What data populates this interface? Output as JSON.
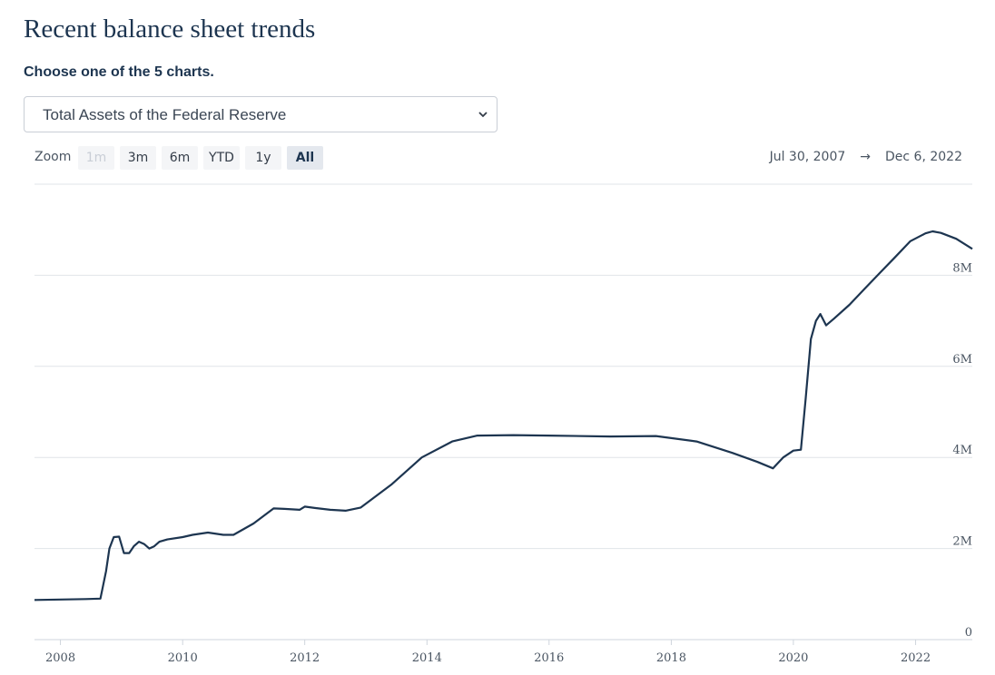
{
  "header": {
    "title": "Recent balance sheet trends",
    "subtitle": "Choose one of the 5 charts."
  },
  "chart_selector": {
    "selected": "Total Assets of the Federal Reserve"
  },
  "zoom": {
    "label": "Zoom",
    "buttons": [
      {
        "label": "1m",
        "state": "disabled"
      },
      {
        "label": "3m",
        "state": "normal"
      },
      {
        "label": "6m",
        "state": "normal"
      },
      {
        "label": "YTD",
        "state": "normal"
      },
      {
        "label": "1y",
        "state": "normal"
      },
      {
        "label": "All",
        "state": "selected"
      }
    ]
  },
  "range": {
    "from": "Jul 30, 2007",
    "arrow": "→",
    "to": "Dec 6, 2022"
  },
  "colors": {
    "line": "#1d3550",
    "grid": "#e1e4e8",
    "text": "#1d3550"
  },
  "chart_data": {
    "type": "line",
    "title": "",
    "xlabel": "",
    "ylabel": "",
    "x_ticks": [
      "2008",
      "2010",
      "2012",
      "2014",
      "2016",
      "2018",
      "2020",
      "2022"
    ],
    "y_ticks": [
      "0",
      "2M",
      "4M",
      "6M",
      "8M"
    ],
    "xlim": [
      "2007-07-30",
      "2022-12-06"
    ],
    "ylim": [
      0,
      10000000
    ],
    "grid": "horizontal",
    "series": [
      {
        "x": [
          "2007-07-30",
          "2008-01-01",
          "2008-06-01",
          "2008-08-27",
          "2008-09-30",
          "2008-10-20",
          "2008-11-15",
          "2008-12-17",
          "2009-01-15",
          "2009-02-15",
          "2009-03-15",
          "2009-04-15",
          "2009-05-15",
          "2009-06-15",
          "2009-07-15",
          "2009-08-15",
          "2009-10-01",
          "2010-01-01",
          "2010-03-01",
          "2010-06-01",
          "2010-09-01",
          "2010-11-01",
          "2011-03-01",
          "2011-06-29",
          "2011-09-01",
          "2011-12-01",
          "2012-01-01",
          "2012-03-01",
          "2012-06-01",
          "2012-09-01",
          "2012-12-01",
          "2013-06-01",
          "2013-12-01",
          "2014-06-01",
          "2014-10-29",
          "2015-06-01",
          "2016-01-01",
          "2017-01-01",
          "2017-10-01",
          "2018-06-01",
          "2019-01-01",
          "2019-06-01",
          "2019-09-01",
          "2019-11-01",
          "2020-01-01",
          "2020-02-15",
          "2020-03-15",
          "2020-04-15",
          "2020-05-15",
          "2020-06-10",
          "2020-07-15",
          "2020-09-01",
          "2020-12-01",
          "2021-03-01",
          "2021-06-01",
          "2021-09-01",
          "2021-12-01",
          "2022-03-01",
          "2022-04-13",
          "2022-06-01",
          "2022-09-01",
          "2022-12-06"
        ],
        "y": [
          870000,
          880000,
          890000,
          900000,
          1500000,
          2000000,
          2250000,
          2260000,
          1900000,
          1900000,
          2050000,
          2150000,
          2100000,
          2000000,
          2050000,
          2150000,
          2200000,
          2250000,
          2300000,
          2350000,
          2300000,
          2300000,
          2550000,
          2880000,
          2870000,
          2850000,
          2920000,
          2890000,
          2850000,
          2830000,
          2900000,
          3400000,
          4000000,
          4350000,
          4480000,
          4490000,
          4480000,
          4460000,
          4470000,
          4350000,
          4100000,
          3900000,
          3760000,
          4000000,
          4150000,
          4170000,
          5300000,
          6600000,
          7000000,
          7150000,
          6900000,
          7050000,
          7350000,
          7700000,
          8050000,
          8400000,
          8750000,
          8920000,
          8965000,
          8930000,
          8800000,
          8580000
        ]
      }
    ]
  }
}
